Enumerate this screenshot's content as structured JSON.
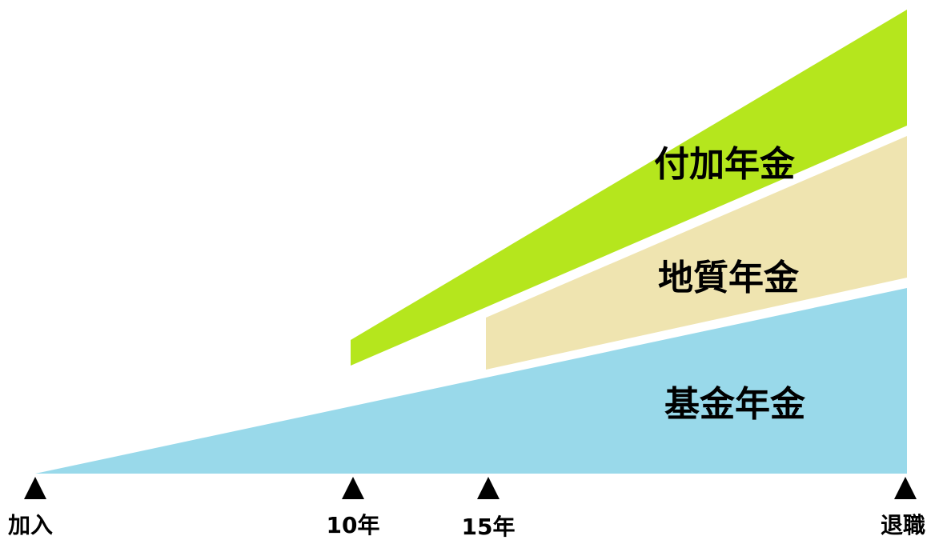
{
  "bands": {
    "fuka": {
      "label": "付加年金",
      "color": "#b5e61d"
    },
    "chishitsu": {
      "label": "地質年金",
      "color": "#efe4b0"
    },
    "kikin": {
      "label": "基金年金",
      "color": "#99d9ea"
    }
  },
  "timeline": {
    "marker_color": "#000000",
    "points": [
      {
        "label": "加入"
      },
      {
        "label": "10年"
      },
      {
        "label": "15年"
      },
      {
        "label": "退職"
      }
    ]
  }
}
